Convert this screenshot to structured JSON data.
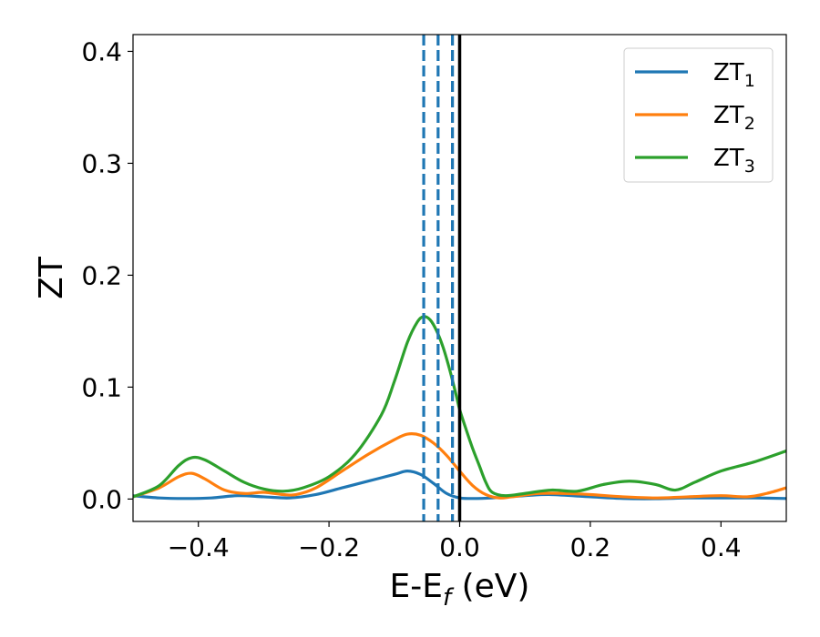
{
  "chart_data": {
    "type": "line",
    "xlabel_base": "E-E",
    "xlabel_sub": "f",
    "xlabel_unit": " (eV)",
    "ylabel": "ZT",
    "xlim": [
      -0.5,
      0.5
    ],
    "ylim": [
      -0.02,
      0.415
    ],
    "x_ticks": [
      -0.4,
      -0.2,
      0.0,
      0.2,
      0.4
    ],
    "x_tick_labels": [
      "−0.4",
      "−0.2",
      "0.0",
      "0.2",
      "0.4"
    ],
    "y_ticks": [
      0.0,
      0.1,
      0.2,
      0.3,
      0.4
    ],
    "y_tick_labels": [
      "0.0",
      "0.1",
      "0.2",
      "0.3",
      "0.4"
    ],
    "grid": false,
    "legend_position": "top-right",
    "vertical_lines": [
      {
        "x": -0.055,
        "style": "dashed",
        "color": "#1f77b4"
      },
      {
        "x": -0.033,
        "style": "dashed",
        "color": "#1f77b4"
      },
      {
        "x": -0.011,
        "style": "dashed",
        "color": "#1f77b4"
      },
      {
        "x": 0.0,
        "style": "solid",
        "color": "#000000"
      }
    ],
    "series": [
      {
        "name": "ZT",
        "name_sub": "1",
        "color": "#1f77b4",
        "x": [
          -0.5,
          -0.46,
          -0.42,
          -0.38,
          -0.34,
          -0.3,
          -0.26,
          -0.22,
          -0.18,
          -0.14,
          -0.1,
          -0.08,
          -0.06,
          -0.04,
          -0.02,
          0.0,
          0.02,
          0.05,
          0.1,
          0.14,
          0.2,
          0.25,
          0.3,
          0.35,
          0.4,
          0.45,
          0.5
        ],
        "y": [
          0.003,
          0.001,
          0.0005,
          0.001,
          0.003,
          0.002,
          0.001,
          0.004,
          0.01,
          0.016,
          0.022,
          0.025,
          0.022,
          0.014,
          0.005,
          0.001,
          0.0005,
          0.001,
          0.003,
          0.004,
          0.002,
          0.0005,
          0.0003,
          0.001,
          0.001,
          0.001,
          0.0005
        ]
      },
      {
        "name": "ZT",
        "name_sub": "2",
        "color": "#ff7f0e",
        "x": [
          -0.5,
          -0.46,
          -0.43,
          -0.41,
          -0.39,
          -0.36,
          -0.33,
          -0.3,
          -0.27,
          -0.25,
          -0.22,
          -0.18,
          -0.14,
          -0.1,
          -0.08,
          -0.06,
          -0.04,
          -0.02,
          0.0,
          0.02,
          0.04,
          0.06,
          0.08,
          0.12,
          0.16,
          0.2,
          0.25,
          0.3,
          0.35,
          0.4,
          0.44,
          0.47,
          0.5
        ],
        "y": [
          0.002,
          0.01,
          0.02,
          0.023,
          0.018,
          0.008,
          0.005,
          0.006,
          0.004,
          0.004,
          0.01,
          0.025,
          0.04,
          0.053,
          0.058,
          0.057,
          0.05,
          0.039,
          0.025,
          0.012,
          0.004,
          0.001,
          0.002,
          0.005,
          0.005,
          0.004,
          0.002,
          0.001,
          0.002,
          0.003,
          0.002,
          0.005,
          0.01
        ]
      },
      {
        "name": "ZT",
        "name_sub": "3",
        "color": "#2ca02c",
        "x": [
          -0.5,
          -0.46,
          -0.43,
          -0.41,
          -0.39,
          -0.36,
          -0.33,
          -0.3,
          -0.27,
          -0.24,
          -0.2,
          -0.16,
          -0.12,
          -0.1,
          -0.08,
          -0.065,
          -0.055,
          -0.045,
          -0.035,
          -0.025,
          -0.015,
          -0.005,
          0.0,
          0.01,
          0.02,
          0.03,
          0.04,
          0.05,
          0.07,
          0.1,
          0.14,
          0.18,
          0.22,
          0.26,
          0.3,
          0.33,
          0.36,
          0.4,
          0.45,
          0.5
        ],
        "y": [
          0.002,
          0.012,
          0.03,
          0.037,
          0.035,
          0.025,
          0.015,
          0.009,
          0.007,
          0.01,
          0.02,
          0.04,
          0.075,
          0.105,
          0.14,
          0.158,
          0.163,
          0.16,
          0.15,
          0.135,
          0.115,
          0.092,
          0.08,
          0.062,
          0.045,
          0.03,
          0.015,
          0.006,
          0.003,
          0.005,
          0.008,
          0.007,
          0.013,
          0.016,
          0.013,
          0.008,
          0.015,
          0.025,
          0.033,
          0.043
        ]
      }
    ]
  }
}
